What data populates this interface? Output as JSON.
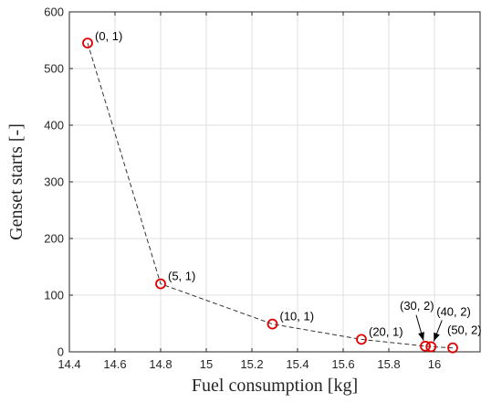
{
  "chart_data": {
    "type": "scatter",
    "xlabel": "Fuel consumption [kg]",
    "ylabel": "Genset starts [-]",
    "xlim": [
      14.4,
      16.2
    ],
    "ylim": [
      0,
      600
    ],
    "xticks": [
      14.4,
      14.6,
      14.8,
      15,
      15.2,
      15.4,
      15.6,
      15.8,
      16
    ],
    "xtick_labels": [
      "14.4",
      "14.6",
      "14.8",
      "15",
      "15.2",
      "15.4",
      "15.6",
      "15.8",
      "16"
    ],
    "yticks": [
      0,
      100,
      200,
      300,
      400,
      500,
      600
    ],
    "ytick_labels": [
      "0",
      "100",
      "200",
      "300",
      "400",
      "500",
      "600"
    ],
    "grid": true,
    "marker_color": "#e00000",
    "line_color": "#333333",
    "line_style": "dashed",
    "points": [
      {
        "x": 14.48,
        "y": 545,
        "label": "(0, 1)"
      },
      {
        "x": 14.8,
        "y": 120,
        "label": "(5, 1)"
      },
      {
        "x": 15.29,
        "y": 49,
        "label": "(10, 1)"
      },
      {
        "x": 15.68,
        "y": 22,
        "label": "(20, 1)"
      },
      {
        "x": 15.96,
        "y": 10,
        "label": "(30, 2)"
      },
      {
        "x": 15.985,
        "y": 9,
        "label": "(40, 2)"
      },
      {
        "x": 16.08,
        "y": 7,
        "label": "(50, 2)"
      }
    ]
  }
}
